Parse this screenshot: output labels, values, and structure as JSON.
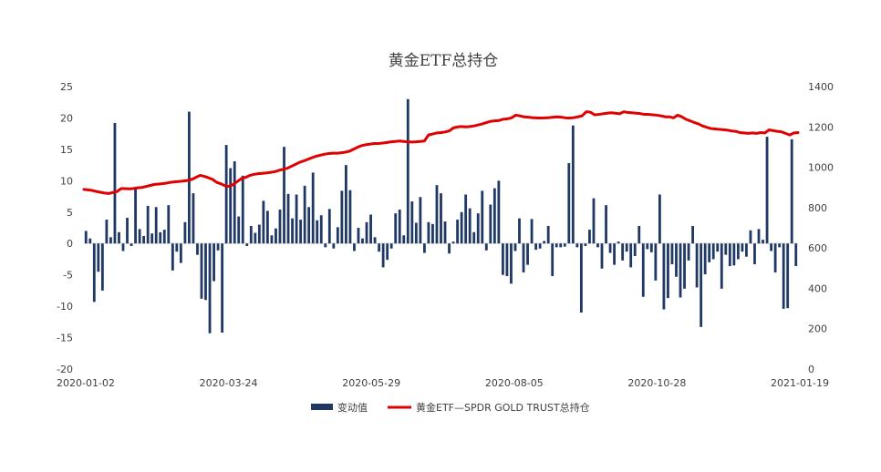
{
  "chart_data": {
    "type": "bar+line",
    "title": "黄金ETF总持仓",
    "x_tick_labels": [
      "2020-01-02",
      "2020-03-24",
      "2020-05-29",
      "2020-08-05",
      "2020-10-28",
      "2021-01-19"
    ],
    "left_axis": {
      "ticks": [
        "25",
        "20",
        "15",
        "10",
        "5",
        "0",
        "-5",
        "-10",
        "-15",
        "-20"
      ],
      "ylim": [
        -20,
        25
      ]
    },
    "right_axis": {
      "ticks": [
        "1400",
        "1200",
        "1000",
        "800",
        "600",
        "400",
        "200",
        "0"
      ],
      "ylim": [
        0,
        1400
      ]
    },
    "grid": false,
    "legend_position": "bottom",
    "series": [
      {
        "name": "变动值",
        "type": "bar",
        "color": "#1f3864",
        "axis": "left",
        "values": [
          2.0,
          0.8,
          -9.3,
          -4.5,
          -7.5,
          3.8,
          1.0,
          19.2,
          1.8,
          -1.2,
          4.1,
          -0.4,
          9.0,
          2.3,
          1.2,
          6.0,
          1.6,
          5.8,
          1.8,
          2.2,
          6.1,
          -4.3,
          -1.3,
          -3.1,
          3.4,
          21.0,
          8.0,
          -1.8,
          -8.8,
          -9.0,
          -14.3,
          -6.0,
          -1.1,
          -14.2,
          15.7,
          12.0,
          13.1,
          4.3,
          10.8,
          -0.4,
          2.8,
          1.7,
          3.0,
          6.8,
          5.2,
          1.3,
          2.4,
          5.4,
          15.4,
          7.9,
          4.0,
          7.8,
          3.8,
          9.2,
          5.8,
          11.3,
          3.7,
          4.5,
          -0.6,
          5.5,
          -0.8,
          2.6,
          8.4,
          12.5,
          8.5,
          -1.2,
          2.5,
          0.8,
          3.4,
          4.6,
          1.0,
          -1.3,
          -3.8,
          -2.6,
          -0.8,
          4.8,
          5.4,
          1.3,
          23.0,
          6.7,
          3.3,
          7.4,
          -1.5,
          3.4,
          3.1,
          9.3,
          8.0,
          3.5,
          -1.6,
          0.3,
          3.8,
          5.0,
          7.8,
          5.6,
          1.8,
          4.8,
          8.4,
          -1.1,
          6.2,
          8.8,
          10.0,
          -5.0,
          -5.2,
          -6.4,
          -1.2,
          4.0,
          -4.6,
          -3.4,
          3.9,
          -1.0,
          -0.8,
          0.4,
          2.8,
          -5.2,
          -0.6,
          -0.6,
          -0.5,
          12.8,
          18.8,
          -0.6,
          -11.0,
          -0.4,
          2.2,
          7.2,
          -0.6,
          -4.0,
          6.1,
          -1.5,
          -3.4,
          0.3,
          -2.7,
          -1.3,
          -3.8,
          -2.0,
          2.8,
          -8.5,
          -0.9,
          -1.4,
          -5.9,
          7.8,
          -10.5,
          -8.7,
          -3.3,
          -5.3,
          -8.6,
          -7.2,
          -2.7,
          2.8,
          -7.0,
          -13.3,
          -4.9,
          -3.0,
          -2.5,
          -1.3,
          -7.2,
          -1.8,
          -3.6,
          -3.5,
          -2.5,
          -1.3,
          -2.1,
          2.1,
          -3.3,
          2.3,
          0.6,
          17.0,
          -1.2,
          -4.6,
          -0.6,
          -10.4,
          -10.3,
          16.6,
          -3.6
        ]
      },
      {
        "name": "黄金ETF—SPDR GOLD TRUST总持仓",
        "type": "line",
        "color": "#e00000",
        "axis": "right",
        "values": [
          890,
          888,
          885,
          880,
          876,
          872,
          870,
          875,
          880,
          895,
          894,
          893,
          895,
          898,
          900,
          905,
          910,
          915,
          917,
          919,
          922,
          926,
          928,
          930,
          932,
          935,
          940,
          950,
          960,
          955,
          948,
          940,
          925,
          918,
          908,
          905,
          915,
          930,
          945,
          950,
          960,
          965,
          968,
          970,
          972,
          975,
          978,
          985,
          990,
          995,
          1005,
          1015,
          1025,
          1032,
          1040,
          1048,
          1055,
          1060,
          1065,
          1068,
          1070,
          1070,
          1072,
          1075,
          1080,
          1090,
          1100,
          1108,
          1112,
          1115,
          1118,
          1118,
          1120,
          1123,
          1126,
          1128,
          1130,
          1128,
          1126,
          1125,
          1126,
          1128,
          1130,
          1160,
          1165,
          1170,
          1172,
          1175,
          1180,
          1195,
          1200,
          1202,
          1200,
          1202,
          1205,
          1210,
          1215,
          1222,
          1228,
          1230,
          1232,
          1238,
          1240,
          1245,
          1258,
          1255,
          1250,
          1248,
          1246,
          1245,
          1244,
          1245,
          1246,
          1248,
          1250,
          1248,
          1245,
          1244,
          1246,
          1250,
          1255,
          1275,
          1273,
          1260,
          1262,
          1265,
          1268,
          1270,
          1268,
          1265,
          1275,
          1272,
          1270,
          1268,
          1266,
          1262,
          1262,
          1260,
          1258,
          1255,
          1250,
          1250,
          1245,
          1258,
          1250,
          1238,
          1230,
          1222,
          1215,
          1205,
          1198,
          1192,
          1190,
          1188,
          1186,
          1184,
          1180,
          1178,
          1172,
          1170,
          1168,
          1170,
          1168,
          1172,
          1170,
          1185,
          1182,
          1178,
          1176,
          1168,
          1160,
          1170,
          1172
        ]
      }
    ]
  }
}
